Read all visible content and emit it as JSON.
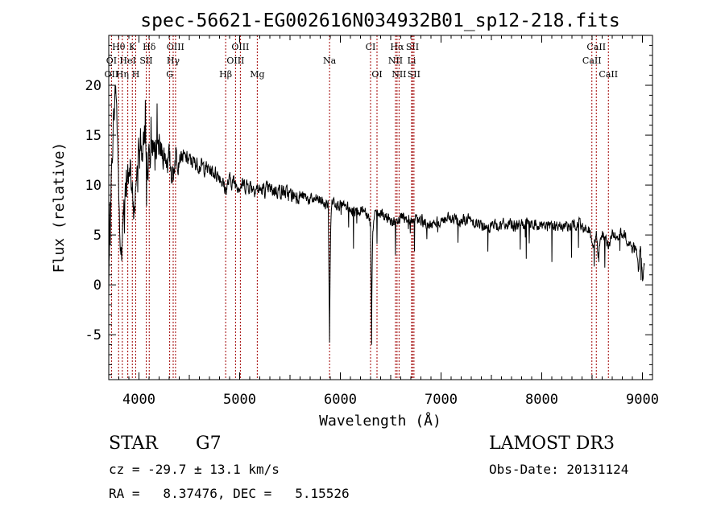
{
  "chart_data": {
    "type": "line",
    "title": "spec-56621-EG002616N034932B01_sp12-218.fits",
    "xlabel": "Wavelength (Å)",
    "ylabel": "Flux (relative)",
    "xlim": [
      3700,
      9100
    ],
    "ylim": [
      -9.5,
      25
    ],
    "xticks": [
      4000,
      5000,
      6000,
      7000,
      8000,
      9000
    ],
    "yticks": [
      -5,
      0,
      5,
      10,
      15,
      20
    ],
    "grid": false,
    "line_color": "#000000",
    "marker_color": "#a00000",
    "spectrum_anchors": {
      "x": [
        3700,
        3710,
        3730,
        3750,
        3770,
        3790,
        3810,
        3830,
        3850,
        3870,
        3890,
        3910,
        3935,
        3950,
        3970,
        3990,
        4010,
        4030,
        4050,
        4070,
        4090,
        4100,
        4150,
        4200,
        4250,
        4300,
        4340,
        4360,
        4400,
        4500,
        4600,
        4700,
        4800,
        4861,
        4900,
        5000,
        5100,
        5200,
        5300,
        5400,
        5500,
        5600,
        5700,
        5800,
        5850,
        5880,
        5893,
        5900,
        5910,
        5930,
        6000,
        6100,
        6200,
        6250,
        6280,
        6300,
        6310,
        6320,
        6340,
        6400,
        6500,
        6563,
        6600,
        6700,
        6800,
        6900,
        7000,
        7100,
        7200,
        7300,
        7400,
        7500,
        7600,
        7700,
        7800,
        7900,
        8000,
        8100,
        8200,
        8300,
        8400,
        8480,
        8500,
        8542,
        8560,
        8600,
        8662,
        8700,
        8750,
        8800,
        8850,
        8900,
        8930,
        8960,
        8980,
        9000,
        9020
      ],
      "y": [
        -1.5,
        6,
        12,
        17,
        20,
        14,
        4,
        3,
        8,
        9,
        11,
        12,
        9,
        7,
        10,
        14,
        15,
        13,
        14.5,
        14,
        12,
        13,
        14,
        13.5,
        13,
        12.5,
        11,
        13,
        13,
        12.5,
        12,
        11.5,
        11,
        9.5,
        10.5,
        10,
        10,
        9.5,
        9.5,
        9.5,
        9,
        9,
        8.5,
        8.5,
        8,
        8,
        -5.5,
        3,
        8,
        8.5,
        8,
        7.5,
        7.5,
        7.5,
        7,
        6,
        -3.8,
        5,
        7,
        7,
        6.5,
        6,
        7,
        6.5,
        6.5,
        6,
        6.5,
        6.5,
        6.5,
        6.5,
        6,
        6,
        6,
        6,
        6,
        6,
        6,
        6,
        5.8,
        6,
        6,
        5.5,
        3.5,
        5,
        3,
        5,
        4,
        5,
        5,
        5,
        4.5,
        3.5,
        4,
        1.5,
        3.5,
        0.5,
        2
      ]
    },
    "line_markers": [
      {
        "label": "Hθ",
        "wavelength": 3798,
        "row": 0
      },
      {
        "label": "K",
        "wavelength": 3934,
        "row": 0
      },
      {
        "label": "Hδ",
        "wavelength": 4102,
        "row": 0
      },
      {
        "label": "OIII",
        "wavelength": 4363,
        "row": 0
      },
      {
        "label": "OIII",
        "wavelength": 5007,
        "row": 0
      },
      {
        "label": "CI",
        "wavelength": 6300,
        "row": 0
      },
      {
        "label": "Hα",
        "wavelength": 6563,
        "row": 0
      },
      {
        "label": "SII",
        "wavelength": 6716,
        "row": 0
      },
      {
        "label": "CaII",
        "wavelength": 8542,
        "row": 0
      },
      {
        "label": "OI",
        "wavelength": 3727,
        "row": 1
      },
      {
        "label": "HeI",
        "wavelength": 3889,
        "row": 1
      },
      {
        "label": "SII",
        "wavelength": 4072,
        "row": 1
      },
      {
        "label": "Hγ",
        "wavelength": 4340,
        "row": 1
      },
      {
        "label": "OIII",
        "wavelength": 4959,
        "row": 1
      },
      {
        "label": "Na",
        "wavelength": 5893,
        "row": 1
      },
      {
        "label": "NII",
        "wavelength": 6548,
        "row": 1
      },
      {
        "label": "Li",
        "wavelength": 6708,
        "row": 1
      },
      {
        "label": "CaII",
        "wavelength": 8498,
        "row": 1
      },
      {
        "label": "OII",
        "wavelength": 3727,
        "row": 2
      },
      {
        "label": "Hη",
        "wavelength": 3835,
        "row": 2
      },
      {
        "label": "H",
        "wavelength": 3968,
        "row": 2
      },
      {
        "label": "G",
        "wavelength": 4305,
        "row": 2
      },
      {
        "label": "Hβ",
        "wavelength": 4861,
        "row": 2
      },
      {
        "label": "Mg",
        "wavelength": 5175,
        "row": 2
      },
      {
        "label": "OI",
        "wavelength": 6364,
        "row": 2
      },
      {
        "label": "NII",
        "wavelength": 6583,
        "row": 2
      },
      {
        "label": "SII",
        "wavelength": 6731,
        "row": 2
      },
      {
        "label": "CaII",
        "wavelength": 8662,
        "row": 2
      }
    ]
  },
  "info": {
    "class": "STAR",
    "subclass": "G7",
    "survey": "LAMOST DR3",
    "cz": "cz = -29.7 ± 13.1 km/s",
    "obs_date": "Obs-Date: 20131124",
    "coords": "RA =   8.37476, DEC =   5.15526"
  }
}
